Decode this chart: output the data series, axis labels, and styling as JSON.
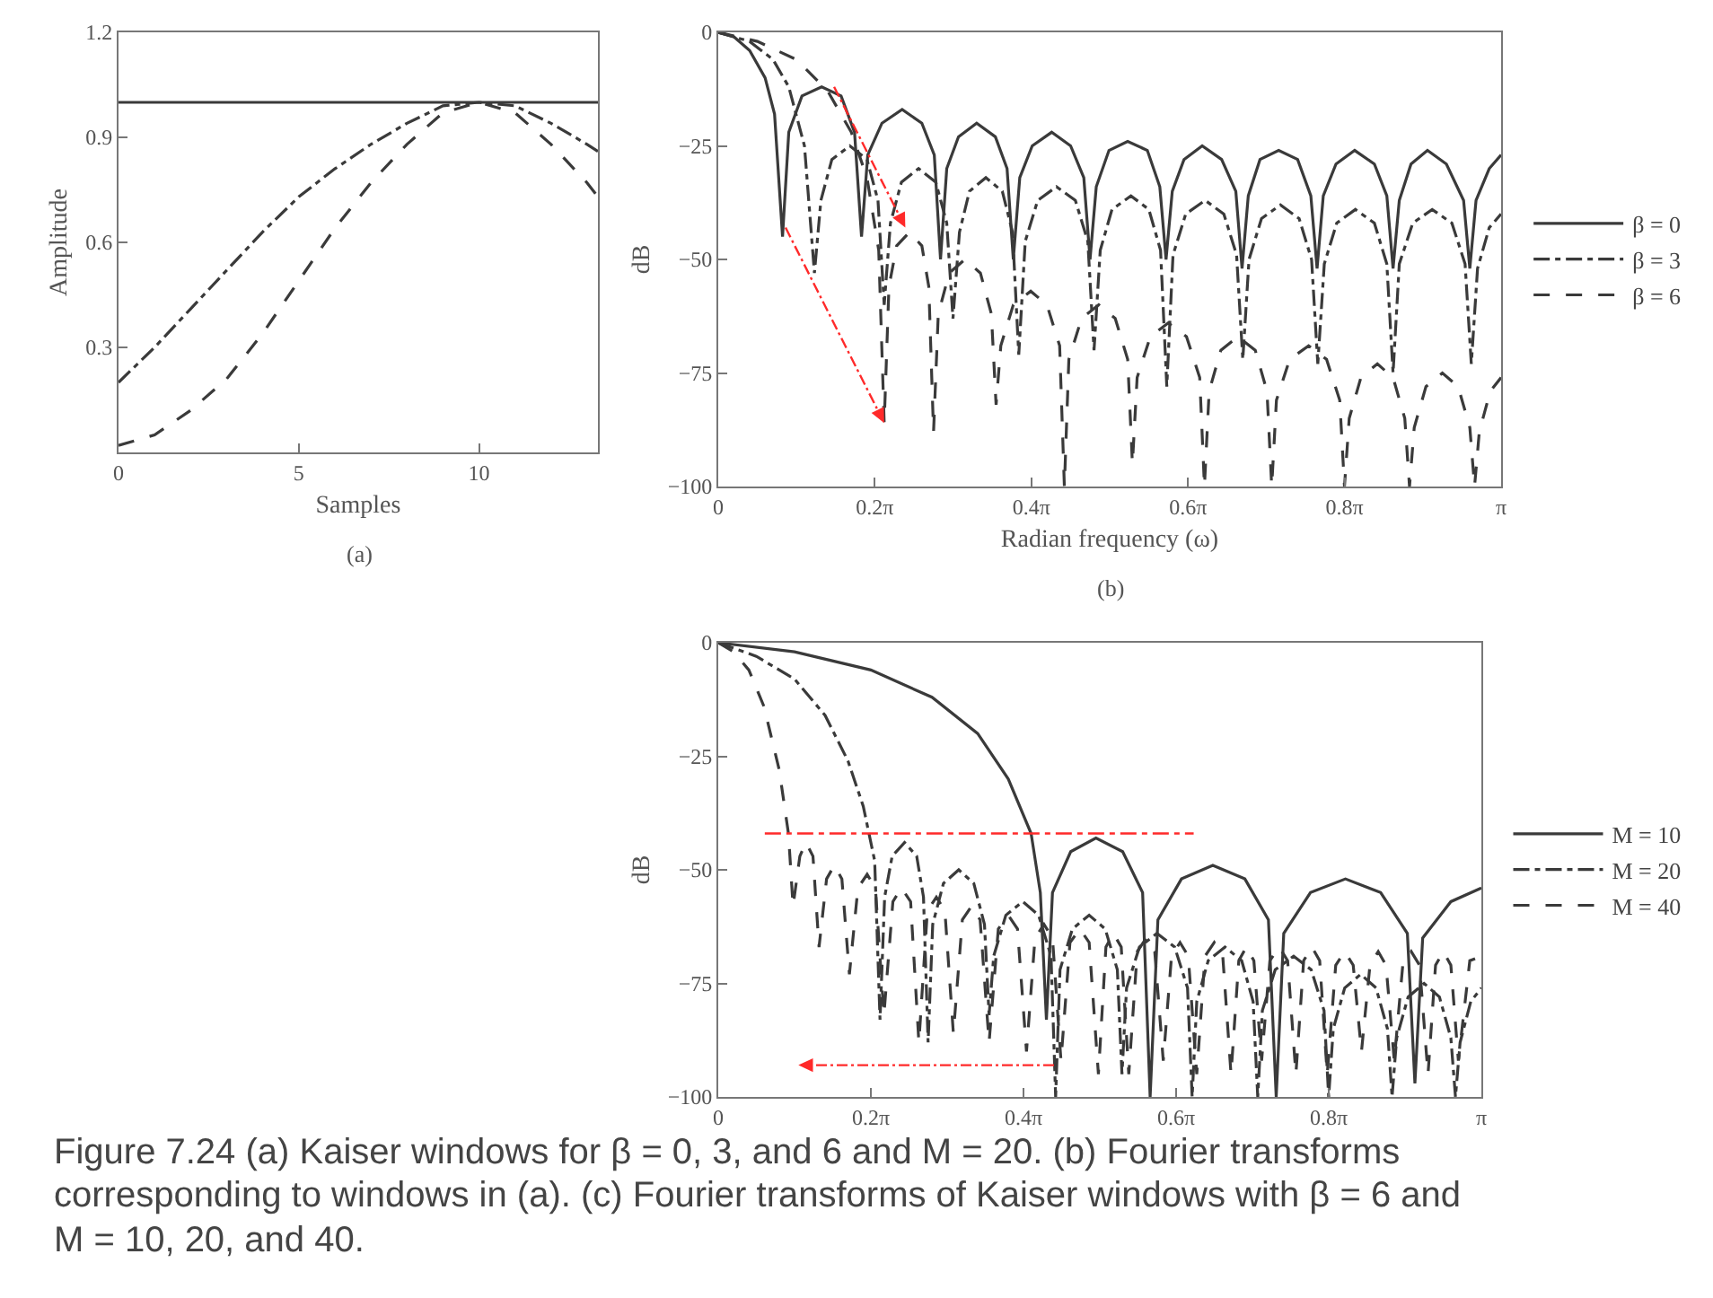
{
  "chart_data": [
    {
      "type": "line",
      "xlabel": "Samples",
      "ylabel": "Amplitude",
      "annotations": [
        "(a)"
      ],
      "xlim": [
        0,
        13.3
      ],
      "xticks": [
        0,
        5,
        10
      ],
      "ylim": [
        0,
        1.2
      ],
      "yticks": [
        0.3,
        0.6,
        0.9,
        1.2
      ],
      "legend": false,
      "series": [
        {
          "color": "#3a3a3a",
          "line_style": "solid",
          "x": [
            0,
            13.3
          ],
          "values": [
            1,
            1
          ]
        },
        {
          "color": "#3a3a3a",
          "line_style": "dashdot",
          "x": [
            0,
            1,
            2,
            3,
            4,
            5,
            6,
            7,
            8,
            9,
            10,
            11,
            12,
            13,
            13.3
          ],
          "values": [
            0.2,
            0.3,
            0.41,
            0.52,
            0.63,
            0.73,
            0.81,
            0.88,
            0.94,
            0.99,
            1,
            0.99,
            0.94,
            0.88,
            0.86
          ]
        },
        {
          "color": "#3a3a3a",
          "line_style": "dashed",
          "x": [
            0,
            1,
            2,
            3,
            4,
            5,
            6,
            7,
            8,
            9,
            10,
            11,
            12,
            13,
            13.3
          ],
          "values": [
            0.02,
            0.05,
            0.12,
            0.21,
            0.34,
            0.49,
            0.64,
            0.77,
            0.88,
            0.97,
            1,
            0.97,
            0.88,
            0.77,
            0.73
          ]
        }
      ]
    },
    {
      "type": "line",
      "xlabel": "Radian frequency (ω)",
      "ylabel": "dB",
      "annotations": [
        "(b)"
      ],
      "xlim": [
        0,
        3.1416
      ],
      "xticks": [
        0,
        {
          "value": 0.6283,
          "label": "0.2π"
        },
        {
          "value": 1.2566,
          "label": "0.4π"
        },
        {
          "value": 1.885,
          "label": "0.6π"
        },
        {
          "value": 2.5133,
          "label": "0.8π"
        },
        {
          "value": 3.1416,
          "label": "π"
        }
      ],
      "ylim": [
        -100,
        0
      ],
      "yticks": [
        0,
        {
          "value": -25,
          "label": "−25"
        },
        {
          "value": -50,
          "label": "−50"
        },
        {
          "value": -75,
          "label": "−75"
        },
        {
          "value": -100,
          "label": "−100"
        }
      ],
      "legend": "right",
      "series": [
        {
          "name": "β = 0",
          "color": "#3a3a3a",
          "line_style": "solid",
          "x": [
            0,
            0.063,
            0.126,
            0.188,
            0.226,
            0.258,
            0.283,
            0.336,
            0.415,
            0.493,
            0.547,
            0.575,
            0.6,
            0.657,
            0.738,
            0.817,
            0.867,
            0.892,
            0.917,
            0.964,
            1.037,
            1.112,
            1.159,
            1.184,
            1.21,
            1.26,
            1.338,
            1.414,
            1.467,
            1.492,
            1.517,
            1.568,
            1.643,
            1.722,
            1.772,
            1.797,
            1.822,
            1.869,
            1.942,
            2.02,
            2.077,
            2.102,
            2.127,
            2.174,
            2.249,
            2.325,
            2.378,
            2.403,
            2.428,
            2.479,
            2.554,
            2.633,
            2.683,
            2.708,
            2.733,
            2.78,
            2.846,
            2.922,
            2.991,
            3.016,
            3.041,
            3.094,
            3.1416
          ],
          "values": [
            0,
            -1,
            -4,
            -10,
            -18,
            -45,
            -22,
            -14,
            -12,
            -14,
            -22,
            -45,
            -27,
            -20,
            -17,
            -20,
            -27,
            -50,
            -30,
            -23,
            -20,
            -23,
            -30,
            -50,
            -32,
            -25,
            -22,
            -25,
            -32,
            -50,
            -34,
            -26,
            -24,
            -26,
            -34,
            -50,
            -35,
            -28,
            -25,
            -28,
            -35,
            -52,
            -36,
            -28,
            -26,
            -28,
            -36,
            -52,
            -36,
            -29,
            -26,
            -29,
            -36,
            -52,
            -37,
            -29,
            -26,
            -29,
            -37,
            -52,
            -37,
            -30,
            -27
          ]
        },
        {
          "name": "β = 3",
          "color": "#3a3a3a",
          "line_style": "dashdot",
          "x": [
            0,
            0.126,
            0.22,
            0.283,
            0.346,
            0.386,
            0.412,
            0.456,
            0.528,
            0.597,
            0.641,
            0.666,
            0.691,
            0.735,
            0.804,
            0.873,
            0.917,
            0.942,
            0.968,
            1.008,
            1.074,
            1.14,
            1.181,
            1.206,
            1.232,
            1.282,
            1.357,
            1.433,
            1.483,
            1.508,
            1.533,
            1.58,
            1.656,
            1.728,
            1.775,
            1.8,
            1.825,
            1.876,
            1.954,
            2.029,
            2.08,
            2.105,
            2.13,
            2.18,
            2.256,
            2.331,
            2.381,
            2.406,
            2.432,
            2.482,
            2.557,
            2.633,
            2.683,
            2.708,
            2.733,
            2.787,
            2.865,
            2.944,
            2.997,
            3.022,
            3.047,
            3.094,
            3.1416
          ],
          "values": [
            0,
            -2,
            -6,
            -12,
            -25,
            -53,
            -37,
            -28,
            -25,
            -28,
            -37,
            -60,
            -42,
            -33,
            -30,
            -33,
            -42,
            -63,
            -44,
            -35,
            -32,
            -35,
            -44,
            -71,
            -46,
            -37,
            -34,
            -37,
            -46,
            -70,
            -48,
            -39,
            -36,
            -39,
            -48,
            -78,
            -49,
            -40,
            -37,
            -40,
            -49,
            -72,
            -50,
            -41,
            -38,
            -41,
            -50,
            -73,
            -51,
            -42,
            -39,
            -42,
            -51,
            -75,
            -51,
            -42,
            -39,
            -42,
            -51,
            -73,
            -52,
            -43,
            -40
          ]
        },
        {
          "name": "β = 6",
          "color": "#3a3a3a",
          "line_style": "dashed",
          "x": [
            0,
            0.157,
            0.314,
            0.44,
            0.534,
            0.597,
            0.644,
            0.666,
            0.685,
            0.716,
            0.767,
            0.817,
            0.845,
            0.864,
            0.883,
            0.927,
            0.99,
            1.052,
            1.096,
            1.115,
            1.134,
            1.184,
            1.254,
            1.319,
            1.37,
            1.389,
            1.407,
            1.458,
            1.527,
            1.593,
            1.643,
            1.662,
            1.681,
            1.734,
            1.806,
            1.879,
            1.932,
            1.951,
            1.97,
            2.017,
            2.086,
            2.155,
            2.202,
            2.221,
            2.24,
            2.293,
            2.369,
            2.441,
            2.494,
            2.513,
            2.532,
            2.579,
            2.645,
            2.708,
            2.755,
            2.774,
            2.793,
            2.84,
            2.906,
            2.969,
            3.016,
            3.035,
            3.054,
            3.098,
            3.1416
          ],
          "values": [
            0,
            -2,
            -6,
            -13,
            -22,
            -32,
            -48,
            -86,
            -56,
            -47,
            -44,
            -47,
            -56,
            -88,
            -62,
            -53,
            -50,
            -53,
            -62,
            -82,
            -69,
            -60,
            -57,
            -60,
            -69,
            -100,
            -72,
            -63,
            -60,
            -63,
            -72,
            -95,
            -76,
            -67,
            -64,
            -67,
            -76,
            -100,
            -79,
            -70,
            -67,
            -70,
            -79,
            -100,
            -81,
            -72,
            -69,
            -72,
            -81,
            -100,
            -85,
            -76,
            -73,
            -76,
            -85,
            -100,
            -87,
            -78,
            -75,
            -78,
            -87,
            -100,
            -88,
            -79,
            -76
          ]
        }
      ]
    },
    {
      "type": "line",
      "ylabel": "dB",
      "annotations": [
        "Figure 7.24 (a) Kaiser windows for β = 0, 3, and 6 and M = 20. (b) Fourier transforms corresponding to windows in (a). (c) Fourier transforms of Kaiser windows with β = 6 and M = 10, 20, and 40."
      ],
      "xlim": [
        0,
        3.1416
      ],
      "xticks": [
        0,
        {
          "value": 0.6283,
          "label": "0.2π"
        },
        {
          "value": 1.2566,
          "label": "0.4π"
        },
        {
          "value": 1.885,
          "label": "0.6π"
        },
        {
          "value": 2.5133,
          "label": "0.8π"
        },
        {
          "value": 3.1416,
          "label": "π"
        }
      ],
      "ylim": [
        -100,
        0
      ],
      "yticks": [
        0,
        {
          "value": -25,
          "label": "−25"
        },
        {
          "value": -50,
          "label": "−50"
        },
        {
          "value": -75,
          "label": "−75"
        },
        {
          "value": -100,
          "label": "−100"
        }
      ],
      "legend": "right",
      "ref_lines": [
        {
          "axis": "y",
          "value": -42,
          "color": "#ff2a2a",
          "line_style": "dashdot"
        }
      ],
      "series": [
        {
          "name": "M = 10",
          "color": "#3a3a3a",
          "line_style": "solid",
          "x": [
            0,
            0.314,
            0.628,
            0.88,
            1.068,
            1.194,
            1.288,
            1.326,
            1.351,
            1.376,
            1.451,
            1.555,
            1.665,
            1.747,
            1.778,
            1.81,
            1.907,
            2.036,
            2.168,
            2.265,
            2.297,
            2.328,
            2.438,
            2.582,
            2.727,
            2.837,
            2.868,
            2.9,
            3.016,
            3.1416
          ],
          "values": [
            0,
            -2,
            -6,
            -12,
            -20,
            -30,
            -42,
            -55,
            -83,
            -55,
            -46,
            -43,
            -46,
            -55,
            -100,
            -61,
            -52,
            -49,
            -52,
            -61,
            -100,
            -64,
            -55,
            -52,
            -55,
            -64,
            -97,
            -65,
            -57,
            -54
          ]
        },
        {
          "name": "M = 20",
          "color": "#3a3a3a",
          "line_style": "dashdot",
          "x": [
            0,
            0.157,
            0.314,
            0.44,
            0.534,
            0.597,
            0.644,
            0.666,
            0.685,
            0.716,
            0.767,
            0.817,
            0.845,
            0.864,
            0.883,
            0.927,
            0.99,
            1.052,
            1.096,
            1.115,
            1.134,
            1.184,
            1.254,
            1.319,
            1.37,
            1.389,
            1.407,
            1.458,
            1.527,
            1.593,
            1.643,
            1.662,
            1.681,
            1.734,
            1.806,
            1.879,
            1.932,
            1.951,
            1.97,
            2.017,
            2.086,
            2.155,
            2.202,
            2.221,
            2.24,
            2.293,
            2.369,
            2.441,
            2.494,
            2.513,
            2.532,
            2.579,
            2.645,
            2.708,
            2.755,
            2.774,
            2.793,
            2.84,
            2.906,
            2.969,
            3.016,
            3.035,
            3.054,
            3.098,
            3.1416
          ],
          "values": [
            0,
            -3,
            -8,
            -16,
            -26,
            -36,
            -48,
            -83,
            -56,
            -47,
            -44,
            -47,
            -56,
            -88,
            -62,
            -53,
            -50,
            -53,
            -62,
            -82,
            -69,
            -60,
            -57,
            -60,
            -69,
            -100,
            -72,
            -63,
            -60,
            -63,
            -72,
            -95,
            -76,
            -67,
            -64,
            -67,
            -76,
            -100,
            -79,
            -70,
            -67,
            -70,
            -79,
            -100,
            -81,
            -72,
            -69,
            -72,
            -81,
            -100,
            -85,
            -76,
            -73,
            -76,
            -85,
            -100,
            -87,
            -78,
            -75,
            -78,
            -87,
            -100,
            -88,
            -79,
            -76
          ]
        },
        {
          "name": "M = 40",
          "color": "#3a3a3a",
          "line_style": "dashed",
          "x": [
            0,
            0.063,
            0.126,
            0.188,
            0.251,
            0.289,
            0.308,
            0.336,
            0.361,
            0.39,
            0.415,
            0.446,
            0.478,
            0.509,
            0.54,
            0.575,
            0.613,
            0.647,
            0.682,
            0.719,
            0.754,
            0.792,
            0.826,
            0.861,
            0.898,
            0.933,
            0.968,
            1.005,
            1.043,
            1.078,
            1.115,
            1.153,
            1.194,
            1.232,
            1.269,
            1.304,
            1.341,
            1.376,
            1.411,
            1.448,
            1.489,
            1.527,
            1.565,
            1.596,
            1.627,
            1.659,
            1.69,
            1.725,
            1.762,
            1.797,
            1.832,
            1.866,
            1.901,
            1.935,
            1.97,
            2.004,
            2.042,
            2.077,
            2.111,
            2.143,
            2.174,
            2.205,
            2.237,
            2.271,
            2.309,
            2.344,
            2.378,
            2.41,
            2.444,
            2.476,
            2.507,
            2.542,
            2.579,
            2.614,
            2.648,
            2.683,
            2.717,
            2.749,
            2.783,
            2.818,
            2.853,
            2.887,
            2.922,
            2.953,
            2.985,
            3.016,
            3.047,
            3.094,
            3.1416
          ],
          "values": [
            0,
            -2,
            -6,
            -14,
            -28,
            -42,
            -58,
            -47,
            -44,
            -47,
            -67,
            -52,
            -49,
            -52,
            -73,
            -54,
            -51,
            -54,
            -82,
            -57,
            -54,
            -57,
            -88,
            -59,
            -56,
            -59,
            -86,
            -61,
            -58,
            -61,
            -88,
            -63,
            -60,
            -63,
            -90,
            -65,
            -62,
            -65,
            -92,
            -66,
            -63,
            -66,
            -95,
            -67,
            -64,
            -67,
            -95,
            -68,
            -65,
            -68,
            -92,
            -69,
            -66,
            -69,
            -95,
            -69,
            -66,
            -69,
            -95,
            -70,
            -67,
            -70,
            -92,
            -70,
            -67,
            -70,
            -95,
            -70,
            -67,
            -70,
            -95,
            -71,
            -68,
            -71,
            -90,
            -71,
            -68,
            -71,
            -92,
            -71,
            -68,
            -71,
            -95,
            -71,
            -68,
            -71,
            -92,
            -70,
            -69
          ]
        }
      ]
    }
  ]
}
